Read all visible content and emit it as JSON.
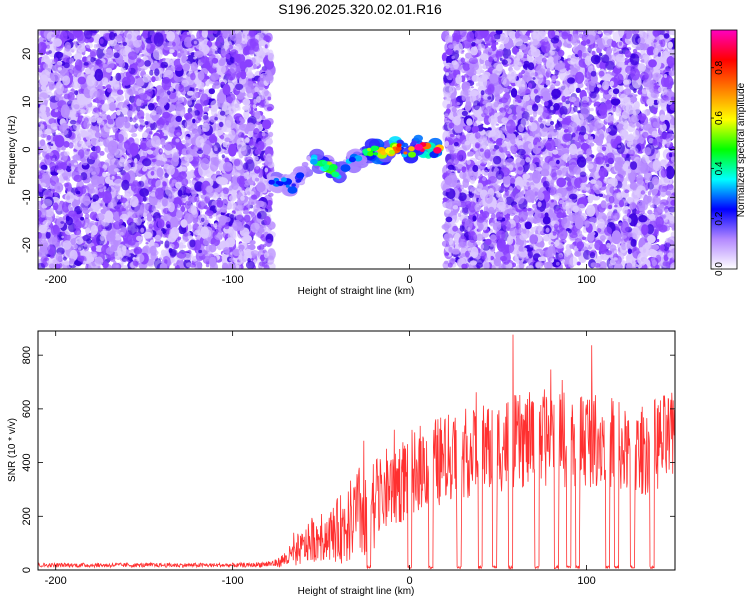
{
  "figure": {
    "title": "S196.2025.320.02.01.R16"
  },
  "chart_data": [
    {
      "type": "heatmap",
      "name": "spectrogram",
      "xlabel": "Height of straight line (km)",
      "ylabel": "Frequency (Hz)",
      "xlim": [
        -210,
        150
      ],
      "ylim": [
        -25,
        25
      ],
      "xticks": [
        -200,
        -100,
        0,
        100
      ],
      "yticks": [
        -20,
        -10,
        0,
        10,
        20
      ],
      "noise_regions_km": [
        [
          -210,
          -78
        ],
        [
          20,
          150
        ]
      ],
      "empty_region_km": [
        -78,
        20
      ],
      "signal_track": {
        "x": [
          -78,
          -70,
          -66,
          -60,
          -55,
          -50,
          -45,
          -40,
          -35,
          -30,
          -25,
          -20,
          -15,
          -10,
          -5,
          0,
          5,
          10,
          15,
          18
        ],
        "y": [
          -7,
          -7,
          -8,
          -5,
          -2,
          -3,
          -4,
          -5,
          -3,
          -2,
          -1,
          0,
          -1,
          0,
          1,
          -1,
          1,
          0,
          0,
          0
        ],
        "amplitude": [
          0.3,
          0.35,
          0.3,
          0.25,
          0.4,
          0.45,
          0.5,
          0.4,
          0.3,
          0.35,
          0.5,
          0.6,
          0.7,
          0.65,
          0.8,
          0.6,
          0.85,
          0.8,
          0.9,
          0.7
        ]
      },
      "colorbar": {
        "label": "Normalized spectral amplitude",
        "range": [
          0,
          0.95
        ],
        "ticks": [
          "0.0",
          "0.2",
          "0.4",
          "0.6",
          "0.8"
        ],
        "tick_values": [
          0,
          0.2,
          0.4,
          0.6,
          0.8
        ],
        "colors": [
          "#ffffff",
          "#b388ff",
          "#0000ff",
          "#00ffff",
          "#00ff00",
          "#ffff00",
          "#ff8000",
          "#ff0000",
          "#ff00c0"
        ]
      }
    },
    {
      "type": "line",
      "name": "snr",
      "xlabel": "Height of straight line (km)",
      "ylabel": "SNR (10 * v/v)",
      "xlim": [
        -210,
        150
      ],
      "ylim": [
        0,
        890
      ],
      "xticks": [
        -200,
        -100,
        0,
        100
      ],
      "yticks": [
        0,
        200,
        400,
        600,
        800
      ],
      "color": "#ff3030",
      "envelope": {
        "x": [
          -210,
          -90,
          -75,
          -65,
          -55,
          -45,
          -35,
          -25,
          -15,
          -5,
          5,
          15,
          25,
          35,
          45,
          55,
          65,
          75,
          85,
          95,
          105,
          115,
          125,
          135,
          145,
          150
        ],
        "mean": [
          18,
          18,
          25,
          60,
          110,
          130,
          170,
          230,
          290,
          330,
          380,
          400,
          420,
          440,
          460,
          470,
          480,
          490,
          500,
          500,
          490,
          480,
          420,
          460,
          480,
          480
        ],
        "spread": [
          8,
          8,
          15,
          50,
          80,
          100,
          150,
          200,
          160,
          160,
          160,
          170,
          170,
          170,
          180,
          180,
          180,
          180,
          200,
          200,
          180,
          180,
          150,
          180,
          180,
          180
        ]
      },
      "dropouts_km": [
        -23,
        0,
        12,
        28,
        40,
        48,
        57,
        72,
        83,
        90,
        95,
        112,
        117,
        126,
        137
      ]
    }
  ]
}
